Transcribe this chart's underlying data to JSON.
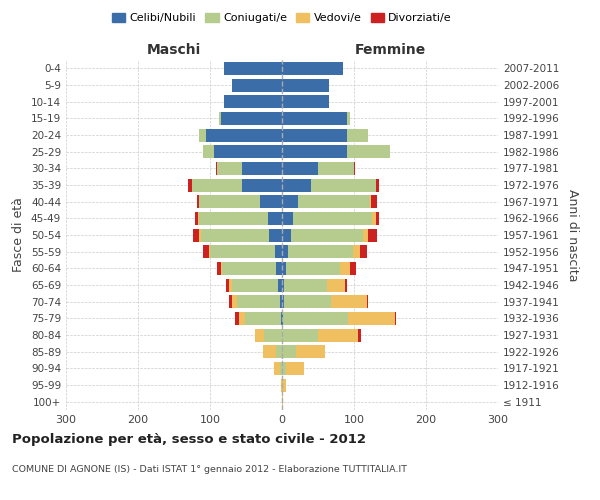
{
  "age_groups": [
    "100+",
    "95-99",
    "90-94",
    "85-89",
    "80-84",
    "75-79",
    "70-74",
    "65-69",
    "60-64",
    "55-59",
    "50-54",
    "45-49",
    "40-44",
    "35-39",
    "30-34",
    "25-29",
    "20-24",
    "15-19",
    "10-14",
    "5-9",
    "0-4"
  ],
  "birth_years": [
    "≤ 1911",
    "1912-1916",
    "1917-1921",
    "1922-1926",
    "1927-1931",
    "1932-1936",
    "1937-1941",
    "1942-1946",
    "1947-1951",
    "1952-1956",
    "1957-1961",
    "1962-1966",
    "1967-1971",
    "1972-1976",
    "1977-1981",
    "1982-1986",
    "1987-1991",
    "1992-1996",
    "1997-2001",
    "2002-2006",
    "2007-2011"
  ],
  "colors": {
    "celibi": "#3b6ea8",
    "coniugati": "#b5cc8e",
    "vedovi": "#f0c060",
    "divorziati": "#cc2222"
  },
  "maschi": {
    "celibi": [
      0,
      0,
      0,
      0,
      0,
      2,
      3,
      5,
      8,
      10,
      18,
      20,
      30,
      55,
      55,
      95,
      105,
      85,
      80,
      70,
      80
    ],
    "coniugati": [
      0,
      0,
      3,
      8,
      25,
      50,
      60,
      65,
      75,
      90,
      95,
      95,
      85,
      70,
      35,
      15,
      10,
      2,
      0,
      0,
      0
    ],
    "vedovi": [
      0,
      2,
      8,
      18,
      12,
      8,
      6,
      3,
      2,
      2,
      2,
      1,
      0,
      0,
      0,
      0,
      0,
      0,
      0,
      0,
      0
    ],
    "divorziati": [
      0,
      0,
      0,
      0,
      0,
      5,
      5,
      5,
      5,
      8,
      8,
      5,
      3,
      5,
      2,
      0,
      0,
      0,
      0,
      0,
      0
    ]
  },
  "femmine": {
    "celibi": [
      0,
      0,
      0,
      0,
      0,
      2,
      3,
      3,
      5,
      8,
      12,
      15,
      22,
      40,
      50,
      90,
      90,
      90,
      65,
      65,
      85
    ],
    "coniugati": [
      0,
      2,
      5,
      20,
      50,
      90,
      65,
      60,
      75,
      90,
      100,
      110,
      100,
      90,
      50,
      60,
      30,
      5,
      0,
      0,
      0
    ],
    "vedovi": [
      2,
      3,
      25,
      40,
      55,
      65,
      50,
      25,
      15,
      10,
      8,
      5,
      2,
      0,
      0,
      0,
      0,
      0,
      0,
      0,
      0
    ],
    "divorziati": [
      0,
      0,
      0,
      0,
      5,
      2,
      2,
      2,
      8,
      10,
      12,
      5,
      8,
      5,
      2,
      0,
      0,
      0,
      0,
      0,
      0
    ]
  },
  "title": "Popolazione per età, sesso e stato civile - 2012",
  "subtitle": "COMUNE DI AGNONE (IS) - Dati ISTAT 1° gennaio 2012 - Elaborazione TUTTITALIA.IT",
  "ylabel_left": "Fasce di età",
  "ylabel_right": "Anni di nascita",
  "xlabel_left": "Maschi",
  "xlabel_right": "Femmine",
  "xlim": 300,
  "legend_labels": [
    "Celibi/Nubili",
    "Coniugati/e",
    "Vedovi/e",
    "Divorziati/e"
  ],
  "bg_color": "#ffffff",
  "grid_color": "#cccccc"
}
